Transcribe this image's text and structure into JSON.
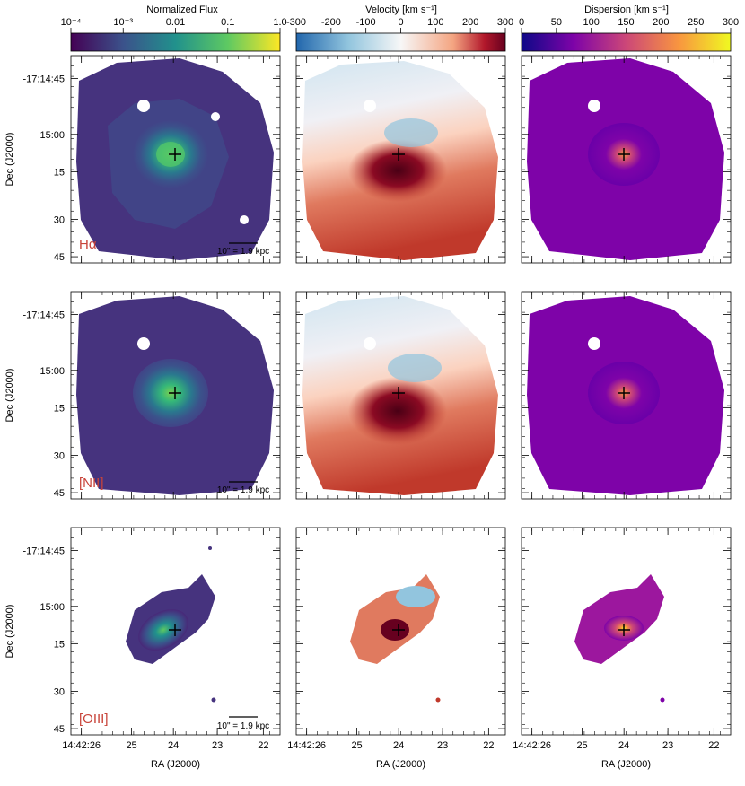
{
  "colorbars": [
    {
      "title": "Normalized Flux",
      "ticks": [
        "10⁻⁴",
        "10⁻³",
        "0.01",
        "0.1",
        "1.0"
      ],
      "scale": "log",
      "range": [
        0.0001,
        1.0
      ],
      "colormap": "viridis"
    },
    {
      "title": "Velocity [km s⁻¹]",
      "ticks": [
        "-300",
        "-200",
        "-100",
        "0",
        "100",
        "200",
        "300"
      ],
      "range": [
        -300,
        300
      ],
      "colormap": "RdBu_r"
    },
    {
      "title": "Dispersion [km s⁻¹]",
      "ticks": [
        "0",
        "50",
        "100",
        "150",
        "200",
        "250",
        "300"
      ],
      "range": [
        0,
        300
      ],
      "colormap": "plasma"
    }
  ],
  "rows": [
    {
      "line": "Hα",
      "scalebar": "10\" = 1.9 kpc"
    },
    {
      "line": "[NII]",
      "scalebar": "10\" = 1.9 kpc"
    },
    {
      "line": "[OIII]",
      "scalebar": "10\" = 1.9 kpc"
    }
  ],
  "axes": {
    "dec_label": "Dec (J2000)",
    "ra_label": "RA (J2000)",
    "dec_ticks": [
      "-17:14:45",
      "15:00",
      "15",
      "30",
      "45"
    ],
    "ra_ticks": [
      "14:42:26",
      "25",
      "24",
      "23",
      "22"
    ]
  },
  "colors": {
    "viridis_low": "#440154",
    "viridis_high": "#fde725",
    "vel_low": "#2166ac",
    "vel_mid": "#f7f7f7",
    "vel_high": "#67001f",
    "plasma_low": "#0d0887",
    "plasma_high": "#f0f921"
  }
}
